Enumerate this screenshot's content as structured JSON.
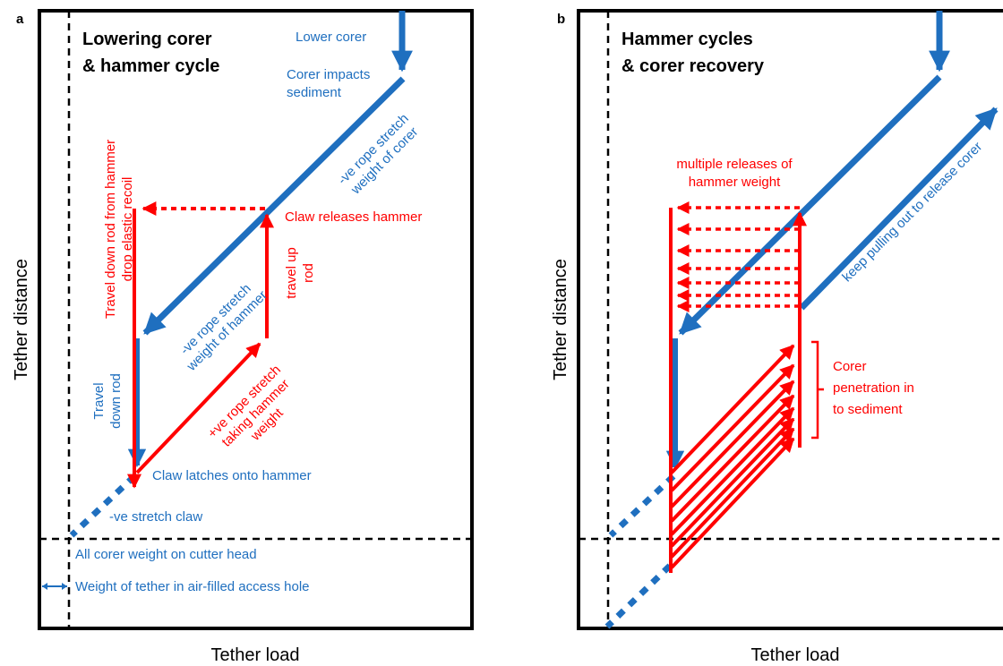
{
  "colors": {
    "blue": "#1f6fbf",
    "red": "#ff0000",
    "frame": "#000000"
  },
  "panel_a": {
    "letter": "a",
    "title_line1": "Lowering corer",
    "title_line2": "& hammer cycle",
    "y_axis": "Tether distance",
    "x_axis": "Tether load",
    "labels": {
      "lower_corer": "Lower corer",
      "corer_impacts_1": "Corer impacts",
      "corer_impacts_2": "sediment",
      "rope_corer_1": "-ve rope stretch",
      "rope_corer_2": "weight of corer",
      "claw_releases": "Claw releases hammer",
      "travel_down_hammer_1": "Travel down rod from hammer",
      "travel_down_hammer_2": "drop elastic recoil",
      "travel_up_1": "travel up",
      "travel_up_2": "rod",
      "rope_hammer_1": "-ve rope stretch",
      "rope_hammer_2": "weight of hammer",
      "travel_down_rod_1": "Travel",
      "travel_down_rod_2": "down rod",
      "plus_rope_1": "+ve rope stretch",
      "plus_rope_2": "taking hammer",
      "plus_rope_3": "weight",
      "claw_latches": "Claw latches onto hammer",
      "neg_stretch_claw": "-ve stretch claw",
      "all_corer_weight": "All corer weight on cutter head",
      "tether_weight": "Weight of tether in air-filled access hole"
    }
  },
  "panel_b": {
    "letter": "b",
    "title_line1": "Hammer cycles",
    "title_line2": "& corer recovery",
    "y_axis": "Tether distance",
    "x_axis": "Tether load",
    "labels": {
      "multiple_1": "multiple releases of",
      "multiple_2": "hammer weight",
      "keep_pulling": "keep pulling out to release corer",
      "penetration_1": "Corer",
      "penetration_2": "penetration in",
      "penetration_3": "to sediment"
    }
  }
}
